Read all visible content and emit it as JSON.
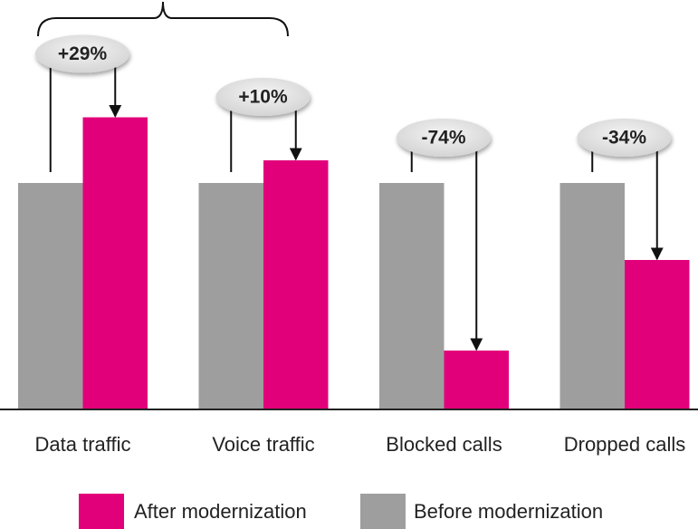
{
  "chart_data": {
    "type": "bar",
    "categories": [
      "Data traffic",
      "Voice traffic",
      "Blocked calls",
      "Dropped calls"
    ],
    "series": [
      {
        "name": "Before modernization",
        "color": "#9e9e9e",
        "values": [
          100,
          100,
          100,
          100
        ]
      },
      {
        "name": "After modernization",
        "color": "#e2007a",
        "values": [
          129,
          110,
          26,
          66
        ]
      }
    ],
    "changes": [
      29,
      10,
      -74,
      -34
    ],
    "change_labels": [
      "+29%",
      "+10%",
      "-74%",
      "-34%"
    ]
  }
}
